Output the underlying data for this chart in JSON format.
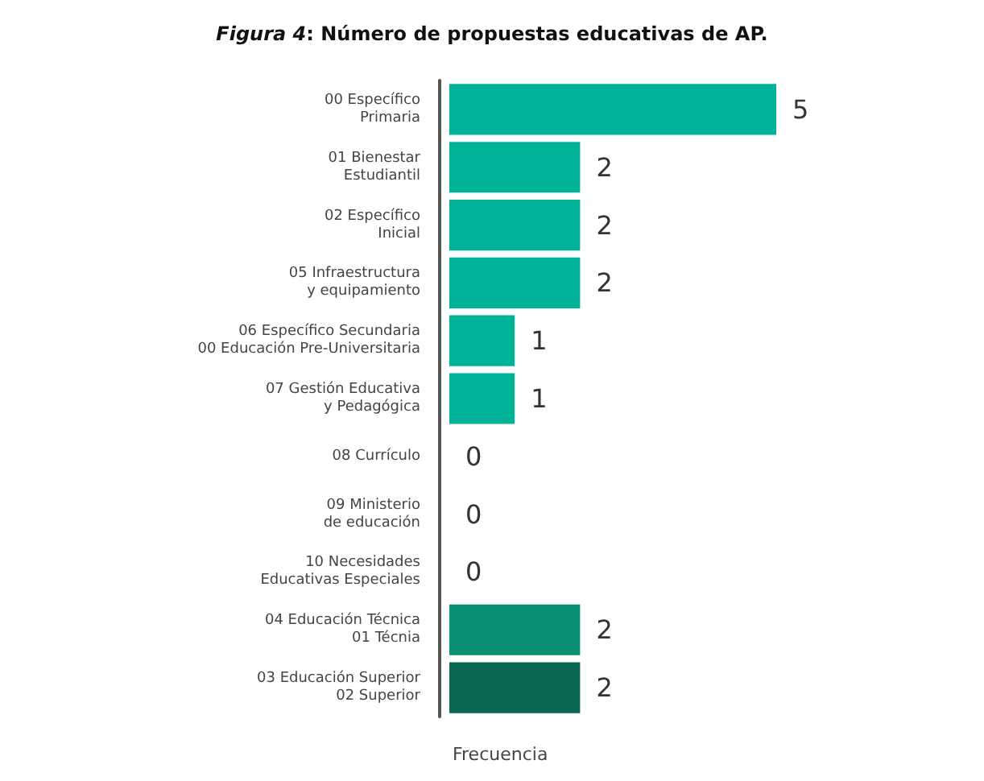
{
  "chart_data": {
    "type": "bar",
    "orientation": "horizontal",
    "title": "Figura 4: Número de propuestas educativas de AP.",
    "xlabel": "Frecuencia",
    "categories": [
      "00 Específico\nPrimaria",
      "01 Bienestar\nEstudiantil",
      "02 Específico\nInicial",
      "05 Infraestructura\ny equipamiento",
      "06 Específico Secundaria\n00 Educación Pre-Universitaria",
      "07 Gestión Educativa\ny Pedagógica",
      "08 Currículo",
      "09 Ministerio\nde educación",
      "10 Necesidades\nEducativas Especiales",
      "04 Educación Técnica\n01 Técnia",
      "03 Educación Superior\n02 Superior"
    ],
    "values": [
      5,
      2,
      2,
      2,
      1,
      1,
      0,
      0,
      0,
      2,
      2
    ],
    "colors": [
      "#00b398",
      "#00b398",
      "#00b398",
      "#00b398",
      "#00b398",
      "#00b398",
      "#00b398",
      "#00b398",
      "#00b398",
      "#0b9076",
      "#0a6850"
    ],
    "data_labels": true
  }
}
